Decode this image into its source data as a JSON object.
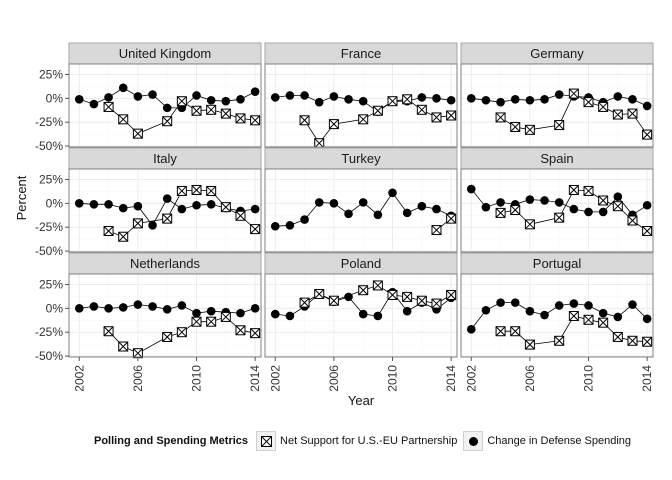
{
  "chart_data": {
    "type": "line",
    "xlabel": "Year",
    "ylabel": "Percent",
    "x_ticks": [
      2002,
      2006,
      2010,
      2014
    ],
    "y_ticks": [
      -50,
      -25,
      0,
      25
    ],
    "y_tick_labels": [
      "-50%",
      "-25%",
      "0%",
      "25%"
    ],
    "xlim": [
      2001.3,
      2014.4
    ],
    "ylim": [
      -51,
      36
    ],
    "grid": true,
    "legend": {
      "title": "Polling and Spending Metrics",
      "position": "bottom",
      "entries": [
        "Net Support for U.S.-EU Partnership",
        "Change in Defense Spending"
      ]
    },
    "series_names": [
      "Net Support for U.S.-EU Partnership",
      "Change in Defense Spending"
    ],
    "panels": [
      {
        "name": "United Kingdom",
        "support": {
          "x": [
            2004,
            2005,
            2006,
            2008,
            2009,
            2010,
            2011,
            2012,
            2013,
            2014
          ],
          "y": [
            -9,
            -22,
            -37,
            -24,
            -3,
            -13,
            -12,
            -16,
            -21,
            -23
          ]
        },
        "defense": {
          "x": [
            2002,
            2003,
            2004,
            2005,
            2006,
            2007,
            2008,
            2009,
            2010,
            2011,
            2012,
            2013,
            2014
          ],
          "y": [
            -1,
            -6,
            1,
            11,
            2,
            4,
            -10,
            -10,
            3,
            -2,
            -3,
            -1,
            7
          ]
        }
      },
      {
        "name": "France",
        "support": {
          "x": [
            2004,
            2005,
            2006,
            2008,
            2009,
            2010,
            2011,
            2012,
            2013,
            2014
          ],
          "y": [
            -23,
            -47,
            -27,
            -22,
            -13,
            -3,
            -1,
            -12,
            -20,
            -18
          ]
        },
        "defense": {
          "x": [
            2002,
            2003,
            2004,
            2005,
            2006,
            2007,
            2008,
            2009,
            2010,
            2011,
            2012,
            2013,
            2014
          ],
          "y": [
            1,
            3,
            3,
            -4,
            2,
            -1,
            -3,
            -14,
            -3,
            -3,
            1,
            0,
            -2
          ]
        }
      },
      {
        "name": "Germany",
        "support": {
          "x": [
            2004,
            2005,
            2006,
            2008,
            2009,
            2010,
            2011,
            2012,
            2013,
            2014
          ],
          "y": [
            -20,
            -30,
            -33,
            -28,
            5,
            -4,
            -9,
            -17,
            -16,
            -38
          ]
        },
        "defense": {
          "x": [
            2002,
            2003,
            2004,
            2005,
            2006,
            2007,
            2008,
            2009,
            2010,
            2011,
            2012,
            2013,
            2014
          ],
          "y": [
            0,
            -2,
            -4,
            -1,
            -2,
            -1,
            4,
            2,
            1,
            -4,
            2,
            -1,
            -8
          ]
        }
      },
      {
        "name": "Italy",
        "support": {
          "x": [
            2004,
            2005,
            2006,
            2008,
            2009,
            2010,
            2011,
            2012,
            2013,
            2014
          ],
          "y": [
            -29,
            -35,
            -21,
            -16,
            13,
            14,
            13,
            -4,
            -13,
            -27
          ]
        },
        "defense": {
          "x": [
            2002,
            2003,
            2004,
            2005,
            2006,
            2007,
            2008,
            2009,
            2010,
            2011,
            2012,
            2013,
            2014
          ],
          "y": [
            0,
            -1,
            -1,
            -5,
            -3,
            -23,
            5,
            -6,
            -2,
            -1,
            -5,
            -8,
            -6
          ]
        }
      },
      {
        "name": "Turkey",
        "support": {
          "x": [
            2013,
            2014
          ],
          "y": [
            -28,
            -16
          ]
        },
        "defense": {
          "x": [
            2002,
            2003,
            2004,
            2005,
            2006,
            2007,
            2008,
            2009,
            2010,
            2011,
            2012,
            2013,
            2014
          ],
          "y": [
            -24,
            -23,
            -17,
            1,
            0,
            -11,
            1,
            -12,
            11,
            -10,
            -3,
            -6,
            -13
          ]
        }
      },
      {
        "name": "Spain",
        "support": {
          "x": [
            2004,
            2005,
            2006,
            2008,
            2009,
            2010,
            2011,
            2012,
            2013,
            2014
          ],
          "y": [
            -10,
            -7,
            -22,
            -15,
            14,
            13,
            3,
            -3,
            -18,
            -29
          ]
        },
        "defense": {
          "x": [
            2002,
            2003,
            2004,
            2005,
            2006,
            2007,
            2008,
            2009,
            2010,
            2011,
            2012,
            2013,
            2014
          ],
          "y": [
            15,
            -4,
            1,
            -1,
            4,
            3,
            1,
            -6,
            -9,
            -9,
            7,
            -12,
            -2
          ]
        }
      },
      {
        "name": "Netherlands",
        "support": {
          "x": [
            2004,
            2005,
            2006,
            2008,
            2009,
            2010,
            2011,
            2012,
            2013,
            2014
          ],
          "y": [
            -24,
            -40,
            -47,
            -30,
            -25,
            -14,
            -14,
            -9,
            -23,
            -26
          ]
        },
        "defense": {
          "x": [
            2002,
            2003,
            2004,
            2005,
            2006,
            2007,
            2008,
            2009,
            2010,
            2011,
            2012,
            2013,
            2014
          ],
          "y": [
            0,
            2,
            0,
            1,
            4,
            2,
            -1,
            3,
            -5,
            -3,
            -4,
            -5,
            0
          ]
        }
      },
      {
        "name": "Poland",
        "support": {
          "x": [
            2004,
            2005,
            2006,
            2008,
            2009,
            2010,
            2011,
            2012,
            2013,
            2014
          ],
          "y": [
            6,
            15,
            8,
            19,
            24,
            14,
            12,
            8,
            5,
            14
          ]
        },
        "defense": {
          "x": [
            2002,
            2003,
            2004,
            2005,
            2006,
            2007,
            2008,
            2009,
            2010,
            2011,
            2012,
            2013,
            2014
          ],
          "y": [
            -6,
            -8,
            2,
            15,
            7,
            12,
            -6,
            -8,
            17,
            -3,
            6,
            -1,
            11
          ]
        }
      },
      {
        "name": "Portugal",
        "support": {
          "x": [
            2004,
            2005,
            2006,
            2008,
            2009,
            2010,
            2011,
            2012,
            2013,
            2014
          ],
          "y": [
            -24,
            -24,
            -38,
            -34,
            -8,
            -12,
            -15,
            -30,
            -34,
            -35
          ]
        },
        "defense": {
          "x": [
            2002,
            2003,
            2004,
            2005,
            2006,
            2007,
            2008,
            2009,
            2010,
            2011,
            2012,
            2013,
            2014
          ],
          "y": [
            -22,
            -2,
            6,
            6,
            -3,
            -7,
            3,
            5,
            3,
            -5,
            -9,
            4,
            -11
          ]
        }
      }
    ]
  },
  "colors": {
    "strip_bg": "#d9d9d9",
    "strip_border": "#a6a6a6",
    "panel_border": "#808080",
    "grid_major": "#ececec",
    "grid_minor": "#f7f7f7",
    "marker_fill_square": "#ffffff",
    "marker_stroke": "#000000"
  }
}
